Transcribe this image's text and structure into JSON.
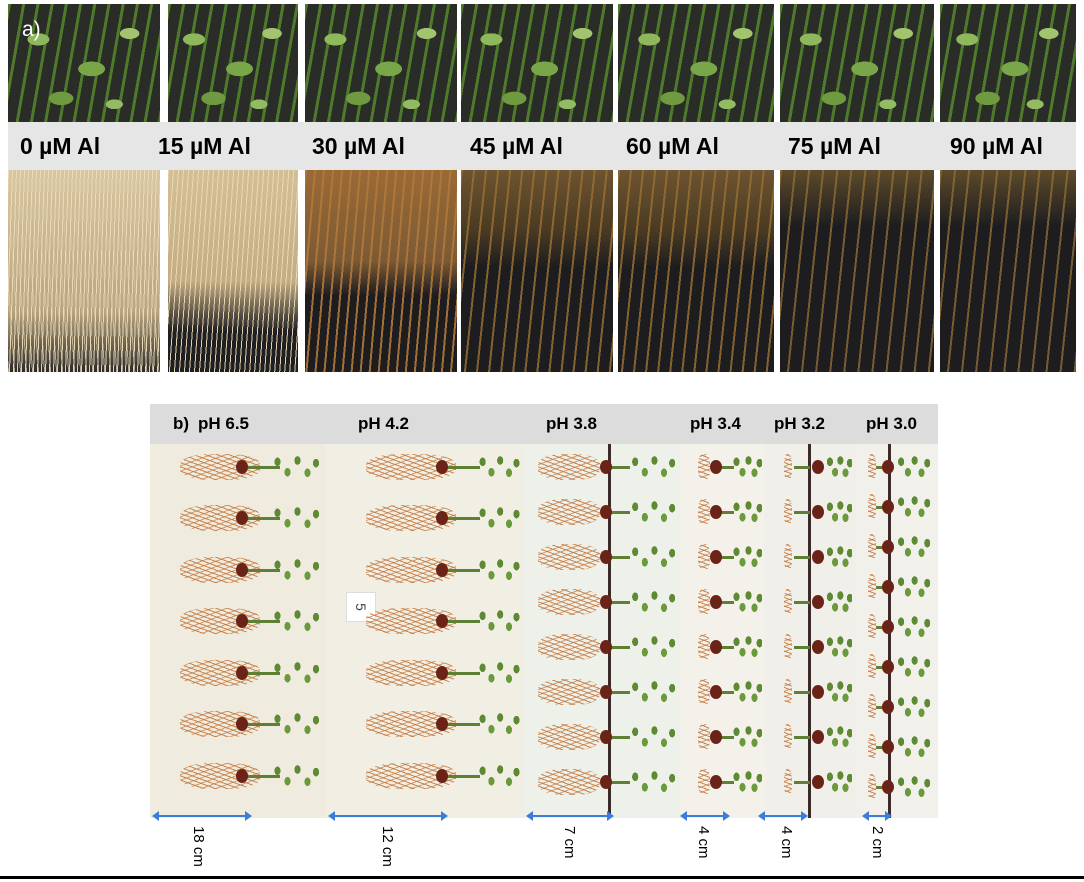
{
  "panel_a": {
    "tag": "a)",
    "columns": [
      {
        "label": "0 µM Al"
      },
      {
        "label": "15 µM Al"
      },
      {
        "label": "30 µM Al"
      },
      {
        "label": "45 µM Al"
      },
      {
        "label": "60 µM Al"
      },
      {
        "label": "75 µM Al"
      },
      {
        "label": "90 µM Al"
      }
    ]
  },
  "panel_b": {
    "tag": "b)",
    "columns": [
      {
        "label": "pH 6.5",
        "measure": "18 cm"
      },
      {
        "label": "pH 4.2",
        "measure": "12 cm"
      },
      {
        "label": "pH 3.8",
        "measure": "7 cm"
      },
      {
        "label": "pH 3.4",
        "measure": "4 cm"
      },
      {
        "label": "pH 3.2",
        "measure": "4 cm"
      },
      {
        "label": "pH 3.0",
        "measure": "2 cm"
      }
    ],
    "tray_tag": "5"
  },
  "colors": {
    "measure_arrow": "#3b7dd8",
    "label_bar_a": "#e6e6e6",
    "label_bar_b": "#dcdcdc"
  }
}
